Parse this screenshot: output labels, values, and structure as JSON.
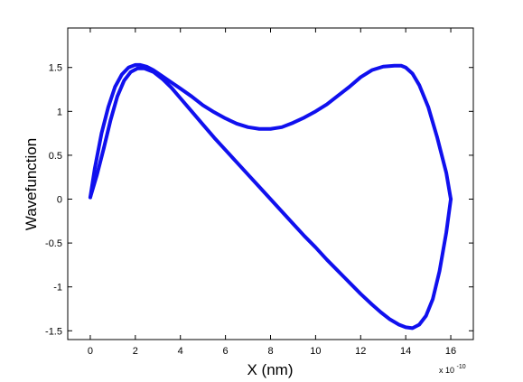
{
  "chart_data": {
    "type": "line",
    "title": "",
    "xlabel": "X (nm)",
    "ylabel": "Wavefunction",
    "x_exponent": {
      "base": "x 10",
      "power": "-10"
    },
    "xlim": [
      -1,
      17
    ],
    "ylim": [
      -1.6,
      1.95
    ],
    "xticks": [
      0,
      2,
      4,
      6,
      8,
      10,
      12,
      14,
      16
    ],
    "xtick_labels": [
      "0",
      "2",
      "4",
      "6",
      "8",
      "10",
      "12",
      "14",
      "16"
    ],
    "yticks": [
      -1.5,
      -1,
      -0.5,
      0,
      0.5,
      1,
      1.5
    ],
    "ytick_labels": [
      "-1.5",
      "-1",
      "-0.5",
      "0",
      "0.5",
      "1",
      "1.5"
    ],
    "grid": false,
    "line_color": "#1010ee",
    "series": [
      {
        "x": [
          0,
          0.2,
          0.5,
          0.8,
          1.1,
          1.4,
          1.7,
          2.0,
          2.2,
          2.5,
          2.8,
          3.2,
          3.6,
          4.0,
          4.5,
          5.0,
          5.5,
          6.0,
          6.5,
          7.0,
          7.5,
          8.0,
          8.5,
          9.0,
          9.5,
          10.0,
          10.5,
          11.0,
          11.5,
          12.0,
          12.5,
          13.0,
          13.5,
          13.8,
          14.0,
          14.3,
          14.6,
          15.0,
          15.4,
          15.8,
          16.0
        ],
        "y": [
          0.02,
          0.35,
          0.75,
          1.05,
          1.28,
          1.42,
          1.5,
          1.53,
          1.53,
          1.51,
          1.47,
          1.4,
          1.33,
          1.26,
          1.17,
          1.07,
          0.99,
          0.92,
          0.86,
          0.82,
          0.8,
          0.8,
          0.82,
          0.87,
          0.93,
          1.0,
          1.08,
          1.18,
          1.28,
          1.39,
          1.47,
          1.51,
          1.52,
          1.52,
          1.5,
          1.43,
          1.3,
          1.05,
          0.7,
          0.3,
          0.0
        ]
      },
      {
        "x": [
          16.0,
          15.8,
          15.5,
          15.2,
          14.9,
          14.6,
          14.3,
          14.0,
          13.7,
          13.3,
          12.9,
          12.5,
          12.0,
          11.5,
          11.0,
          10.5,
          10.0,
          9.5,
          9.0,
          8.5,
          8.0,
          7.5,
          7.0,
          6.5,
          6.0,
          5.5,
          5.0,
          4.5,
          4.0,
          3.6,
          3.2,
          2.8,
          2.4,
          2.1,
          1.8,
          1.5,
          1.2,
          0.9,
          0.6,
          0.3,
          0.0
        ],
        "y": [
          0.0,
          -0.38,
          -0.82,
          -1.14,
          -1.33,
          -1.43,
          -1.47,
          -1.46,
          -1.43,
          -1.37,
          -1.29,
          -1.2,
          -1.08,
          -0.95,
          -0.82,
          -0.69,
          -0.55,
          -0.42,
          -0.28,
          -0.14,
          0.0,
          0.14,
          0.28,
          0.42,
          0.56,
          0.7,
          0.85,
          1.0,
          1.15,
          1.27,
          1.37,
          1.45,
          1.49,
          1.49,
          1.45,
          1.35,
          1.17,
          0.9,
          0.58,
          0.28,
          0.02
        ]
      }
    ]
  }
}
